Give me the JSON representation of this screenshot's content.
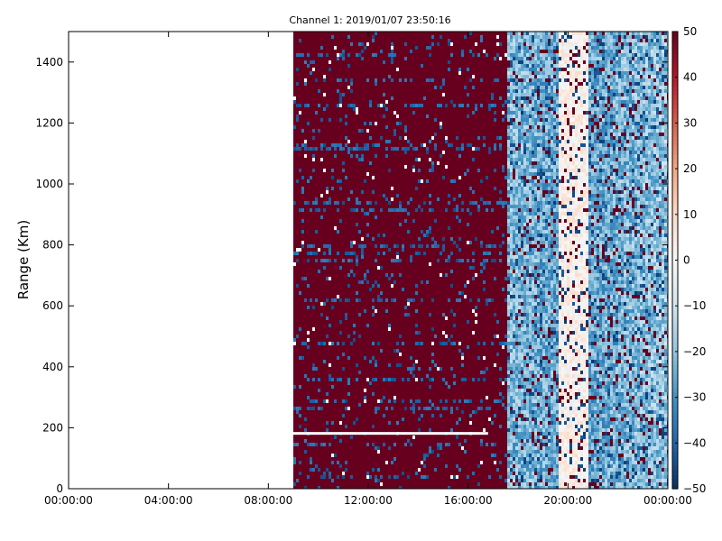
{
  "chart_data": {
    "type": "heatmap",
    "title": "Channel 1: 2019/01/07 23:50:16",
    "ylabel": "Range (Km)",
    "xlabel": "",
    "x_ticks": [
      "00:00:00",
      "04:00:00",
      "08:00:00",
      "12:00:00",
      "16:00:00",
      "20:00:00",
      "00:00:00"
    ],
    "y_ticks": [
      0,
      200,
      400,
      600,
      800,
      1000,
      1200,
      1400
    ],
    "xlim_hours": [
      0,
      24
    ],
    "ylim": [
      0,
      1500
    ],
    "data_start_hour": 9.0,
    "colorbar": {
      "ticks": [
        50,
        40,
        30,
        20,
        10,
        0,
        -10,
        -20,
        -30,
        -40,
        -50
      ],
      "range": [
        -50,
        50
      ],
      "colormap": "RdBu_r",
      "colors": [
        "#053061",
        "#2166ac",
        "#4393c3",
        "#92c5de",
        "#d1e5f0",
        "#f7f7f7",
        "#fddbc7",
        "#f4a582",
        "#d6604d",
        "#b2182b",
        "#67001f"
      ]
    },
    "grid": false,
    "data_description_regions": [
      {
        "from_hour": 9.0,
        "to_hour": 17.5,
        "dominant_value": 50,
        "note": "saturated with scattered low values"
      },
      {
        "from_hour": 17.5,
        "to_hour": 24,
        "dominant_value": -20,
        "note": "mixed blue/white with scattered saturated cells"
      }
    ]
  }
}
